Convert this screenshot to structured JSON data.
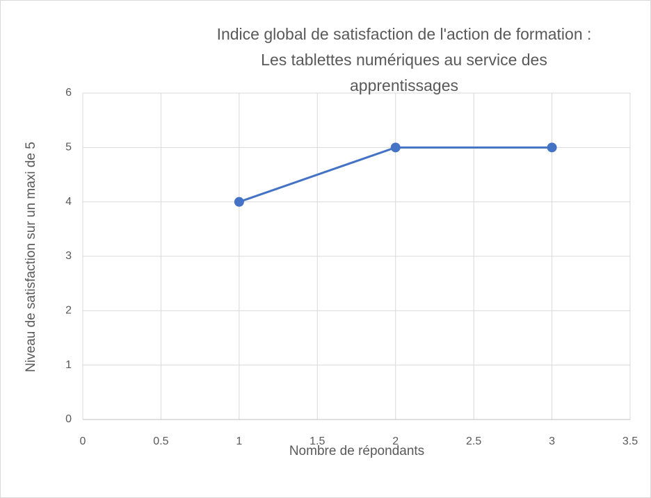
{
  "chart_data": {
    "type": "line",
    "title": "Indice global de satisfaction de l'action de formation  : Les tablettes numériques au service des apprentissages",
    "x_label": "Nombre de répondants",
    "y_label": "Niveau de satisfaction sur un maxi de 5",
    "x": [
      1,
      2,
      3
    ],
    "values": [
      4,
      5,
      5
    ],
    "color": "#4472c4",
    "xlim": [
      0,
      3.5
    ],
    "xticks": [
      0,
      0.5,
      1,
      1.5,
      2,
      2.5,
      3,
      3.5
    ],
    "ylim": [
      0,
      6
    ],
    "yticks": [
      0,
      1,
      2,
      3,
      4,
      5,
      6
    ],
    "grid": true
  }
}
